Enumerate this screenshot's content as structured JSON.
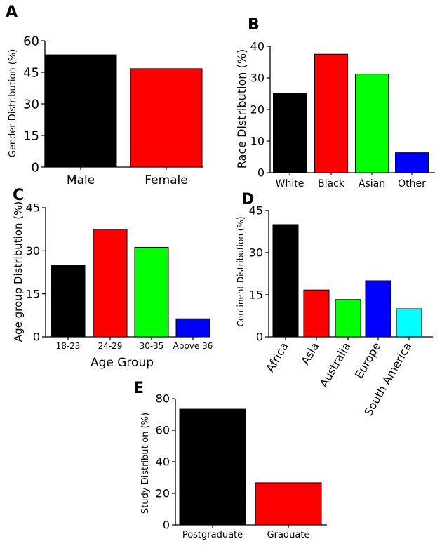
{
  "chart_data": [
    {
      "panel": "A",
      "type": "bar",
      "categories": [
        "Male",
        "Female"
      ],
      "values": [
        53.3,
        46.7
      ],
      "colors": [
        "#000000",
        "#ff0000"
      ],
      "xlabel": "",
      "ylabel": "Gender Distribution (%)",
      "ylim": [
        0,
        60
      ],
      "yticks": [
        0,
        15,
        30,
        45,
        60
      ],
      "grid": false
    },
    {
      "panel": "B",
      "type": "bar",
      "categories": [
        "White",
        "Black",
        "Asian",
        "Other"
      ],
      "values": [
        25.0,
        37.5,
        31.2,
        6.3
      ],
      "colors": [
        "#000000",
        "#ff0000",
        "#00ff00",
        "#0000ff"
      ],
      "xlabel": "",
      "ylabel": "Race Distribution (%)",
      "ylim": [
        0,
        40
      ],
      "yticks": [
        0,
        10,
        20,
        30,
        40
      ],
      "grid": false
    },
    {
      "panel": "C",
      "type": "bar",
      "categories": [
        "18-23",
        "24-29",
        "30-35",
        "Above 36"
      ],
      "values": [
        25.0,
        37.5,
        31.2,
        6.3
      ],
      "colors": [
        "#000000",
        "#ff0000",
        "#00ff00",
        "#0000ff"
      ],
      "xlabel": "Age Group",
      "ylabel": "Age group Distribution (%)",
      "ylim": [
        0,
        45
      ],
      "yticks": [
        0,
        15,
        30,
        45
      ],
      "grid": false
    },
    {
      "panel": "D",
      "type": "bar",
      "categories": [
        "Africa",
        "Asia",
        "Australia",
        "Europe",
        "South America"
      ],
      "values": [
        40.0,
        16.7,
        13.3,
        20.0,
        10.0
      ],
      "colors": [
        "#000000",
        "#ff0000",
        "#00ff00",
        "#0000ff",
        "#00ffff"
      ],
      "xlabel": "",
      "ylabel": "Continent Distribution (%)",
      "ylim": [
        0,
        45
      ],
      "yticks": [
        0,
        15,
        30,
        45
      ],
      "grid": false
    },
    {
      "panel": "E",
      "type": "bar",
      "categories": [
        "Postgraduate",
        "Graduate"
      ],
      "values": [
        73.3,
        26.7
      ],
      "colors": [
        "#000000",
        "#ff0000"
      ],
      "xlabel": "",
      "ylabel": "Study Distribution (%)",
      "ylim": [
        0,
        80
      ],
      "yticks": [
        0,
        20,
        40,
        60,
        80
      ],
      "grid": false
    }
  ]
}
